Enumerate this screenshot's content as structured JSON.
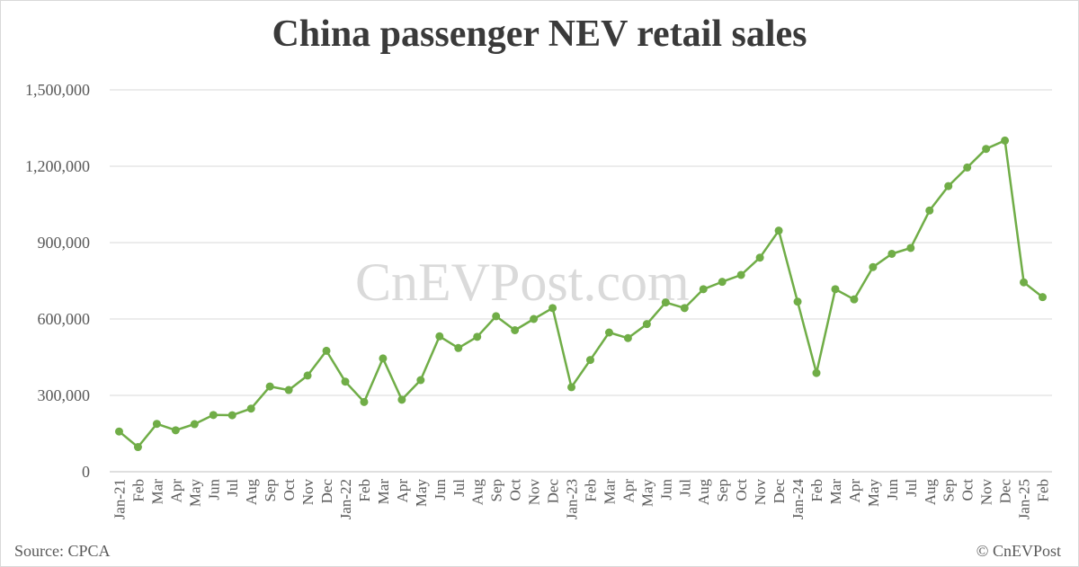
{
  "chart_data": {
    "type": "line",
    "title": "China passenger NEV retail sales",
    "watermark": "CnEVPost.com",
    "source": "Source: CPCA",
    "copyright": "© CnEVPost",
    "ylim": [
      0,
      1500000
    ],
    "yticks": [
      0,
      300000,
      600000,
      900000,
      1200000,
      1500000
    ],
    "ytick_labels": [
      "0",
      "300,000",
      "600,000",
      "900,000",
      "1,200,000",
      "1,500,000"
    ],
    "grid": true,
    "line_color": "#70ad47",
    "categories": [
      "Jan-21",
      "Feb",
      "Mar",
      "Apr",
      "May",
      "Jun",
      "Jul",
      "Aug",
      "Sep",
      "Oct",
      "Nov",
      "Dec",
      "Jan-22",
      "Feb",
      "Mar",
      "Apr",
      "May",
      "Jun",
      "Jul",
      "Aug",
      "Sep",
      "Oct",
      "Nov",
      "Dec",
      "Jan-23",
      "Feb",
      "Mar",
      "Apr",
      "May",
      "Jun",
      "Jul",
      "Aug",
      "Sep",
      "Oct",
      "Nov",
      "Dec",
      "Jan-24",
      "Feb",
      "Mar",
      "Apr",
      "May",
      "Jun",
      "Jul",
      "Aug",
      "Sep",
      "Oct",
      "Nov",
      "Dec",
      "Jan-25",
      "Feb"
    ],
    "values": [
      158000,
      97000,
      188000,
      163000,
      187000,
      223000,
      222000,
      248000,
      335000,
      321000,
      378000,
      475000,
      354000,
      274000,
      445000,
      283000,
      360000,
      532000,
      486000,
      530000,
      611000,
      556000,
      600000,
      643000,
      332000,
      439000,
      547000,
      525000,
      580000,
      665000,
      643000,
      717000,
      746000,
      773000,
      841000,
      947000,
      668000,
      388000,
      717000,
      677000,
      804000,
      856000,
      879000,
      1026000,
      1122000,
      1195000,
      1268000,
      1301000,
      744000,
      686000
    ]
  }
}
